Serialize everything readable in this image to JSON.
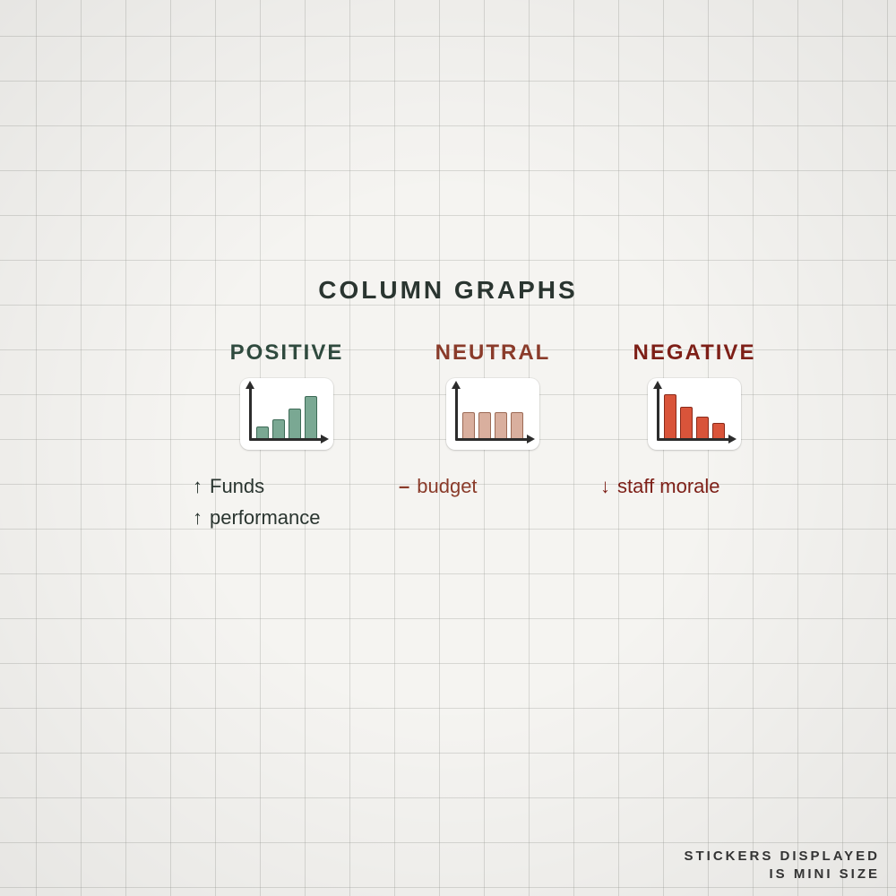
{
  "title": "COLUMN GRAPHS",
  "footer": {
    "line1": "STICKERS DISPLAYED",
    "line2": "IS MINI SIZE"
  },
  "colors": {
    "ink_dark": "#2a3530",
    "ink_green": "#2f4a3e",
    "ink_rust": "#8a3b2a",
    "ink_red": "#7d1f17",
    "bar_green": "#7aa893",
    "bar_green_border": "#3d6a56",
    "bar_peach": "#d9af9e",
    "bar_peach_border": "#9c6a55",
    "bar_red": "#d9543a",
    "bar_red_border": "#8a2a1a",
    "axis": "#2c2c2c",
    "paper": "#f5f4f1",
    "grid": "rgba(160,160,155,0.35)"
  },
  "sections": {
    "positive": {
      "label": "POSITIVE",
      "label_color": "#2f4a3e",
      "chart": {
        "type": "bar",
        "bar_color": "#7aa893",
        "bar_border": "#3d6a56",
        "heights_pct": [
          22,
          35,
          55,
          78
        ]
      },
      "captions": [
        {
          "marker": "up",
          "text": "Funds",
          "color": "#2a3530"
        },
        {
          "marker": "up",
          "text": "performance",
          "color": "#2a3530"
        }
      ]
    },
    "neutral": {
      "label": "NEUTRAL",
      "label_color": "#8a3b2a",
      "chart": {
        "type": "bar",
        "bar_color": "#d9af9e",
        "bar_border": "#9c6a55",
        "heights_pct": [
          48,
          48,
          48,
          48
        ]
      },
      "captions": [
        {
          "marker": "dash",
          "text": "budget",
          "color": "#8a3b2a"
        }
      ]
    },
    "negative": {
      "label": "NEGATIVE",
      "label_color": "#7d1f17",
      "chart": {
        "type": "bar",
        "bar_color": "#d9543a",
        "bar_border": "#8a2a1a",
        "heights_pct": [
          82,
          58,
          40,
          28
        ]
      },
      "captions": [
        {
          "marker": "down",
          "text": "staff morale",
          "color": "#7d1f17"
        }
      ]
    }
  }
}
